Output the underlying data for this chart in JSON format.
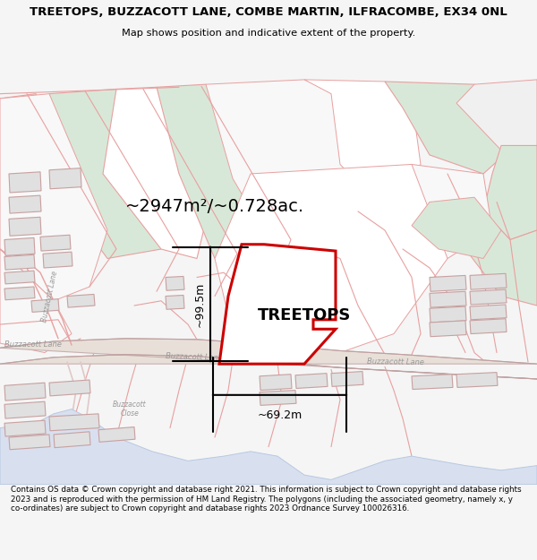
{
  "title_line1": "TREETOPS, BUZZACOTT LANE, COMBE MARTIN, ILFRACOMBE, EX34 0NL",
  "title_line2": "Map shows position and indicative extent of the property.",
  "area_label": "~2947m²/~0.728ac.",
  "property_label": "TREETOPS",
  "dim_vertical": "~99.5m",
  "dim_horizontal": "~69.2m",
  "footer_text": "Contains OS data © Crown copyright and database right 2021. This information is subject to Crown copyright and database rights 2023 and is reproduced with the permission of HM Land Registry. The polygons (including the associated geometry, namely x, y co-ordinates) are subject to Crown copyright and database rights 2023 Ordnance Survey 100026316.",
  "bg_color": "#f5f5f5",
  "map_bg": "#ffffff",
  "field_color_green": "#d8e8d8",
  "field_color_light": "#f0f0f0",
  "property_fill": "#ffffff",
  "property_edge": "#cc0000",
  "road_line_color": "#c8a8a8",
  "road_fill": "#f0e8e8",
  "building_color": "#e0e0e0",
  "building_edge": "#c8a0a0",
  "water_color": "#d8e0f0",
  "water_edge": "#b8c8e0",
  "title_fontsize": 9.5,
  "subtitle_fontsize": 8.5,
  "label_fontsize": 14,
  "property_label_fontsize": 13,
  "road_label_color": "#aaaaaa",
  "boundary_color": "#e8a0a0"
}
